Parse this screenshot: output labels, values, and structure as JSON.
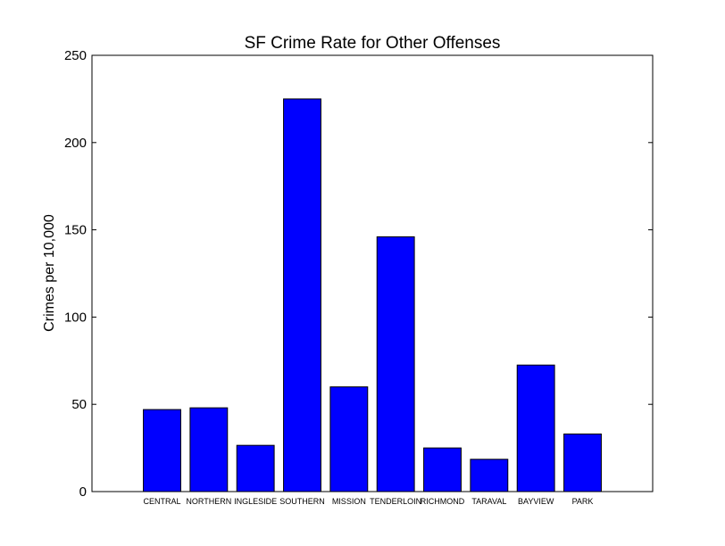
{
  "chart_data": {
    "type": "bar",
    "title": "SF Crime Rate for Other Offenses",
    "xlabel": "",
    "ylabel": "Crimes per 10,000",
    "categories": [
      "CENTRAL",
      "NORTHERN",
      "INGLESIDE",
      "SOUTHERN",
      "MISSION",
      "TENDERLOIN",
      "RICHMOND",
      "TARAVAL",
      "BAYVIEW",
      "PARK"
    ],
    "values": [
      47,
      48,
      26.5,
      225,
      60,
      146,
      25,
      18.5,
      72.5,
      33
    ],
    "ylim": [
      0,
      250
    ],
    "yticks": [
      0,
      50,
      100,
      150,
      200,
      250
    ],
    "grid": false,
    "bar_color": "#0000ff",
    "edge_color": "#000000"
  }
}
